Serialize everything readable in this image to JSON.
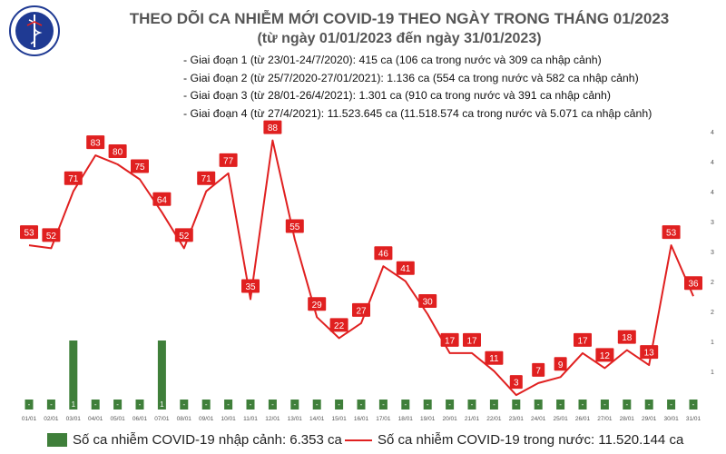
{
  "logo": {
    "text_top": "BỘ Y TẾ",
    "text_bottom": "MINISTRY OF HEALTH",
    "icon": "caduceus-icon",
    "color": "#1f3a93"
  },
  "header": {
    "title": "THEO DÕI CA NHIỄM MỚI COVID-19 THEO NGÀY TRONG THÁNG 01/2023",
    "subtitle": "(từ ngày 01/01/2023 đến ngày 31/01/2023)"
  },
  "notes": [
    "- Giai đoạn 1 (từ 23/01-24/7/2020): 415 ca (106 ca trong nước và 309 ca nhập cảnh)",
    "- Giai đoạn 2 (từ 25/7/2020-27/01/2021): 1.136 ca (554 ca trong nước và 582 ca nhập cảnh)",
    "- Giai đoạn 3 (từ 28/01-26/4/2021): 1.301 ca (910 ca trong nước và 391 ca nhập cảnh)",
    "- Giai đoạn 4 (từ 27/4/2021): 11.523.645 ca (11.518.574 ca trong nước và 5.071 ca nhập cảnh)"
  ],
  "legend": {
    "bar_label": "Số ca nhiễm COVID-19 nhập cảnh: 6.353 ca",
    "line_label": "Số ca nhiễm COVID-19 trong nước: 11.520.144 ca"
  },
  "chart_data": {
    "type": "bar+line",
    "categories": [
      "01/01",
      "02/01",
      "03/01",
      "04/01",
      "05/01",
      "06/01",
      "07/01",
      "08/01",
      "09/01",
      "10/01",
      "11/01",
      "12/01",
      "13/01",
      "14/01",
      "15/01",
      "16/01",
      "17/01",
      "18/01",
      "19/01",
      "20/01",
      "21/01",
      "22/01",
      "23/01",
      "24/01",
      "25/01",
      "26/01",
      "27/01",
      "28/01",
      "29/01",
      "30/01",
      "31/01"
    ],
    "series": [
      {
        "name": "Số ca nhiễm COVID-19 nhập cảnh",
        "kind": "bar",
        "color": "#3f7f3a",
        "values": [
          0,
          0,
          1,
          0,
          0,
          0,
          1,
          0,
          0,
          0,
          0,
          0,
          0,
          0,
          0,
          0,
          0,
          0,
          0,
          0,
          0,
          0,
          0,
          0,
          0,
          0,
          0,
          0,
          0,
          0,
          0
        ]
      },
      {
        "name": "Số ca nhiễm COVID-19 trong nước",
        "kind": "line",
        "color": "#e02020",
        "values": [
          53,
          52,
          71,
          83,
          80,
          75,
          64,
          52,
          71,
          77,
          35,
          88,
          55,
          29,
          22,
          27,
          46,
          41,
          30,
          17,
          17,
          11,
          3,
          7,
          9,
          17,
          12,
          18,
          13,
          53,
          36
        ]
      }
    ],
    "right_axis_ticks": [
      "4",
      "4",
      "4",
      "3",
      "3",
      "2",
      "2",
      "1",
      "1"
    ]
  }
}
